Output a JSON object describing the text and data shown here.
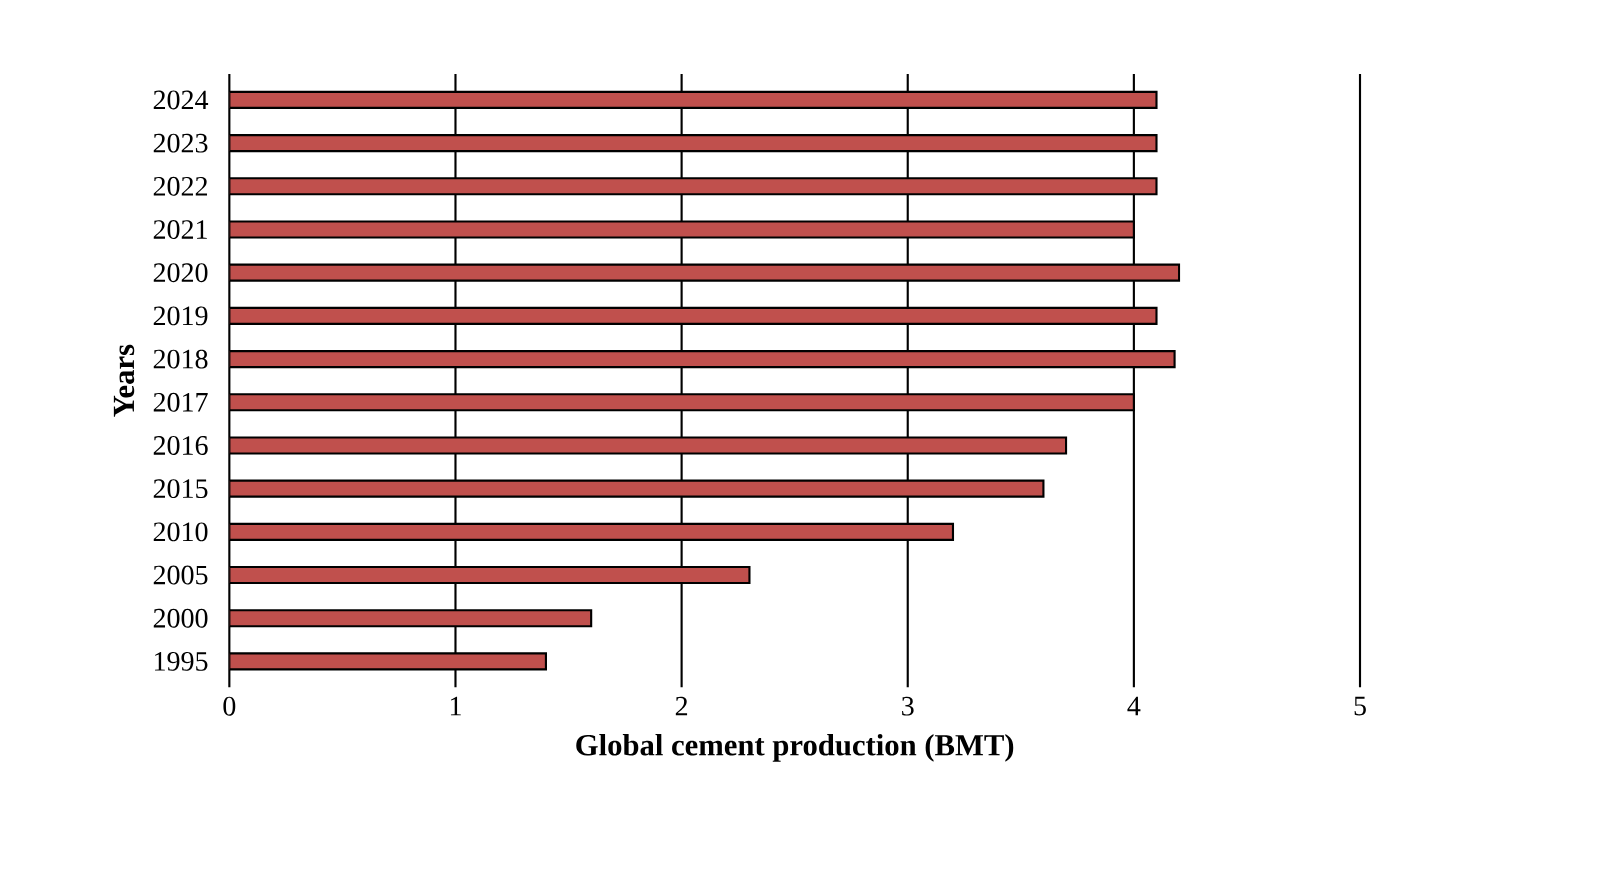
{
  "chart_data": {
    "type": "bar",
    "orientation": "horizontal",
    "xlabel": "Global cement production (BMT)",
    "ylabel": "Years",
    "categories": [
      "2024",
      "2023",
      "2022",
      "2021",
      "2020",
      "2019",
      "2018",
      "2017",
      "2016",
      "2015",
      "2010",
      "2005",
      "2000",
      "1995"
    ],
    "values": [
      4.1,
      4.1,
      4.1,
      4.0,
      4.2,
      4.1,
      4.18,
      4.0,
      3.7,
      3.6,
      3.2,
      2.3,
      1.6,
      1.4
    ],
    "color": "#c0504d",
    "xlim": [
      0,
      5
    ],
    "xticks": [
      0,
      1,
      2,
      3,
      4,
      5
    ],
    "grid": "x"
  }
}
